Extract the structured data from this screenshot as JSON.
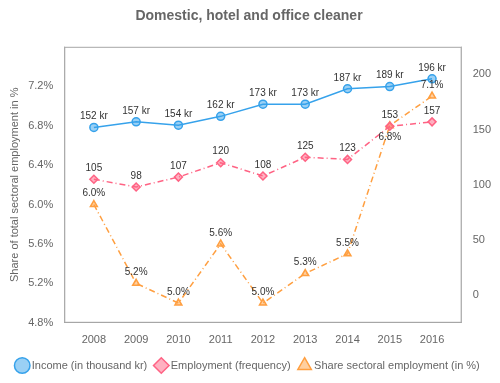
{
  "chart_data": {
    "type": "line",
    "title": "Domestic, hotel and office cleaner",
    "x": [
      2008,
      2009,
      2010,
      2011,
      2012,
      2013,
      2014,
      2015,
      2016
    ],
    "xlim": [
      2007.3,
      2016.7
    ],
    "xticks": [
      2008,
      2009,
      2010,
      2011,
      2012,
      2013,
      2014,
      2015,
      2016
    ],
    "ylabel": "Share of total sectoral employment in %",
    "ylim": [
      4.8,
      7.6
    ],
    "yticks": [
      {
        "value": 4.8,
        "label": "4.8%"
      },
      {
        "value": 5.2,
        "label": "5.2%"
      },
      {
        "value": 5.6,
        "label": "5.6%"
      },
      {
        "value": 6.0,
        "label": "6.0%"
      },
      {
        "value": 6.4,
        "label": "6.4%"
      },
      {
        "value": 6.8,
        "label": "6.8%"
      },
      {
        "value": 7.2,
        "label": "7.2%"
      }
    ],
    "y2lim": [
      -25,
      225
    ],
    "y2ticks": [
      0,
      50,
      100,
      150,
      200
    ],
    "series": [
      {
        "name": "Income (in thousand kr)",
        "axis": "y2",
        "values": [
          152,
          157,
          154,
          162,
          173,
          173,
          187,
          189,
          196
        ],
        "value_labels": [
          "152 kr",
          "157 kr",
          "154 kr",
          "162 kr",
          "173 kr",
          "173 kr",
          "187 kr",
          "189 kr",
          "196 kr"
        ],
        "marker": "circle",
        "line_style": "solid"
      },
      {
        "name": "Employment (frequency)",
        "axis": "y2",
        "values": [
          105,
          98,
          107,
          120,
          108,
          125,
          123,
          153,
          157
        ],
        "marker": "diamond",
        "line_style": "dashdot"
      },
      {
        "name": "Share sectoral employment (in %)",
        "values": [
          6.0,
          5.2,
          5.0,
          5.6,
          5.0,
          5.3,
          5.5,
          6.8,
          7.1
        ],
        "value_labels": [
          "6.0%",
          "5.2%",
          "5.0%",
          "5.6%",
          "5.0%",
          "5.3%",
          "5.5%",
          "6.8%",
          "7.1%"
        ],
        "marker": "triangle",
        "line_style": "dashdot"
      }
    ],
    "data_labels": true,
    "legend": "bottom",
    "grid": false
  }
}
